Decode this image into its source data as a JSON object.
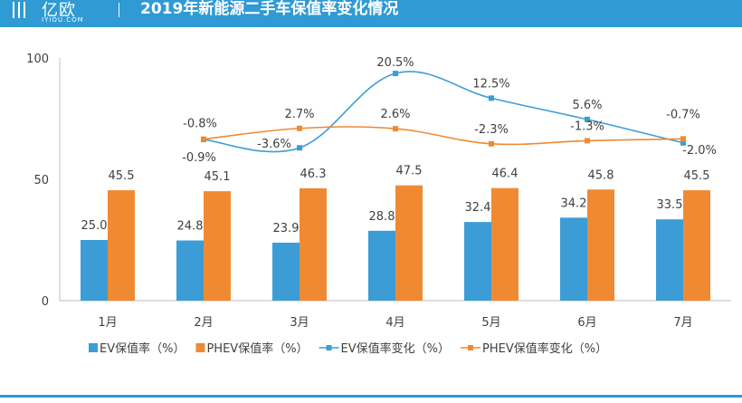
{
  "header": {
    "brand_name": "亿欧",
    "brand_sub": "IYIOU.COM",
    "title": "2019年新能源二手车保值率变化情况"
  },
  "colors": {
    "ev": "#3c9dd6",
    "phev": "#ef8a33",
    "header": "#2f9ad4",
    "axis": "#bfbfbf",
    "text": "#404040"
  },
  "chart_data": {
    "type": "bar",
    "categories": [
      "1月",
      "2月",
      "3月",
      "4月",
      "5月",
      "6月",
      "7月"
    ],
    "ylim": [
      0,
      100
    ],
    "yticks": [
      "0",
      "50",
      "100"
    ],
    "grid": false,
    "legend_position": "bottom",
    "series": [
      {
        "name": "EV保值率（%）",
        "kind": "bar",
        "color": "#3c9dd6",
        "values": [
          25.0,
          24.8,
          23.9,
          28.8,
          32.4,
          34.2,
          33.5
        ],
        "labels": [
          "25.0",
          "24.8",
          "23.9",
          "28.8",
          "32.4",
          "34.2",
          "33.5"
        ]
      },
      {
        "name": "PHEV保值率（%）",
        "kind": "bar",
        "color": "#ef8a33",
        "values": [
          45.5,
          45.1,
          46.3,
          47.5,
          46.4,
          45.8,
          45.5
        ],
        "labels": [
          "45.5",
          "45.1",
          "46.3",
          "47.5",
          "46.4",
          "45.8",
          "45.5"
        ]
      },
      {
        "name": "EV保值率变化（%）",
        "kind": "line",
        "color": "#3c9dd6",
        "secondary_axis": true,
        "values": [
          null,
          -0.9,
          -3.6,
          20.5,
          12.5,
          5.6,
          -2.0
        ],
        "labels": [
          null,
          "-0.9%",
          "-3.6%",
          "20.5%",
          "12.5%",
          "5.6%",
          "-2.0%"
        ]
      },
      {
        "name": "PHEV保值率变化（%）",
        "kind": "line",
        "color": "#ef8a33",
        "secondary_axis": true,
        "values": [
          null,
          -0.8,
          2.7,
          2.6,
          -2.3,
          -1.3,
          -0.7
        ],
        "labels": [
          null,
          "-0.8%",
          "2.7%",
          "2.6%",
          "-2.3%",
          "-1.3%",
          "-0.7%"
        ]
      }
    ]
  }
}
